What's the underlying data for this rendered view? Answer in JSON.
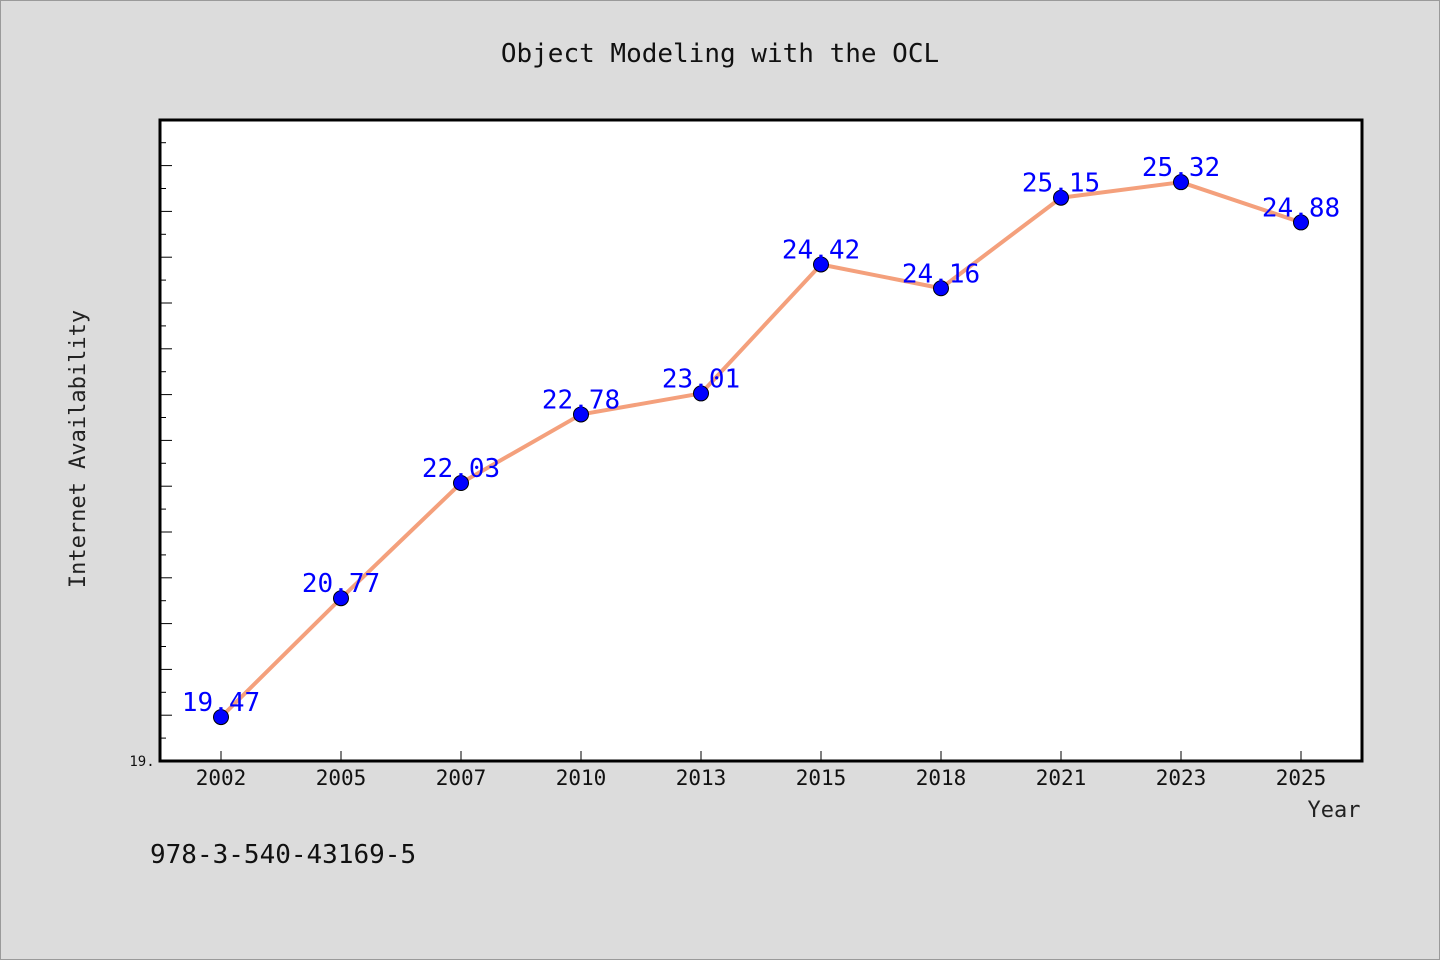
{
  "chart_data": {
    "type": "line",
    "title": "Object Modeling with the OCL",
    "xlabel": "Year",
    "ylabel": "Internet Availability",
    "categories": [
      "2002",
      "2005",
      "2007",
      "2010",
      "2013",
      "2015",
      "2018",
      "2021",
      "2023",
      "2025"
    ],
    "series": [
      {
        "values": [
          19.47,
          20.77,
          22.03,
          22.78,
          23.01,
          24.42,
          24.16,
          25.15,
          25.32,
          24.88
        ],
        "data_labels": [
          "19.47",
          "20.77",
          "22.03",
          "22.78",
          "23.01",
          "24.42",
          "24.16",
          "25.15",
          "25.32",
          "24.88"
        ]
      }
    ],
    "ylim": [
      18.99,
      26.0
    ],
    "y_tick_labels": [
      "19."
    ],
    "grid": false,
    "legend": "none",
    "colors": {
      "line": "#f4a07c",
      "marker": "#0000ff",
      "data_label": "#0000ff",
      "plot_bg": "#ffffff",
      "page_bg": "#dcdcdc"
    }
  },
  "footer": {
    "isbn": "978-3-540-43169-5"
  }
}
